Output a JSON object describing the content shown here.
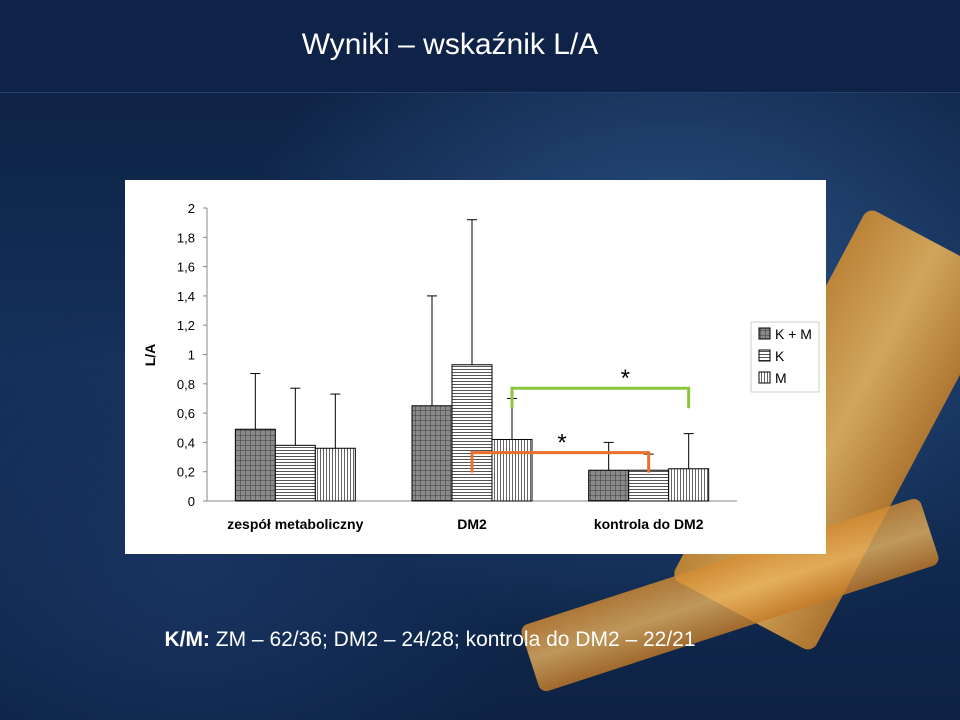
{
  "slide": {
    "title": "Wyniki – wskaźnik L/A",
    "footer_bold": "K/M:",
    "footer_text": " ZM – 62/36; DM2 – 24/28; kontrola do DM2 – 22/21"
  },
  "chart_data": {
    "type": "bar",
    "ylabel": "L/A",
    "xlabel": "",
    "ylim": [
      0,
      2
    ],
    "yticks": [
      "0",
      "0,2",
      "0,4",
      "0,6",
      "0,8",
      "1",
      "1,2",
      "1,4",
      "1,6",
      "1,8",
      "2"
    ],
    "categories": [
      "zespół metaboliczny",
      "DM2",
      "kontrola do DM2"
    ],
    "series": [
      {
        "name": "K + M",
        "values": [
          0.49,
          0.65,
          0.21
        ],
        "error": [
          0.38,
          0.75,
          0.19
        ],
        "pattern": "dark-grid"
      },
      {
        "name": "K",
        "values": [
          0.38,
          0.93,
          0.21
        ],
        "error": [
          0.39,
          0.99,
          0.11
        ],
        "pattern": "horizontal-lines"
      },
      {
        "name": "M",
        "values": [
          0.36,
          0.42,
          0.22
        ],
        "error": [
          0.37,
          0.28,
          0.24
        ],
        "pattern": "vertical-lines"
      }
    ],
    "annotations": [
      {
        "label": "*",
        "color": "#8cc63f",
        "from": "DM2 / M",
        "to": "kontrola do DM2 / M"
      },
      {
        "label": "*",
        "color": "#e8702a",
        "from": "DM2 / K",
        "to": "kontrola do DM2 / K"
      }
    ],
    "legend": "right",
    "grid": false
  }
}
